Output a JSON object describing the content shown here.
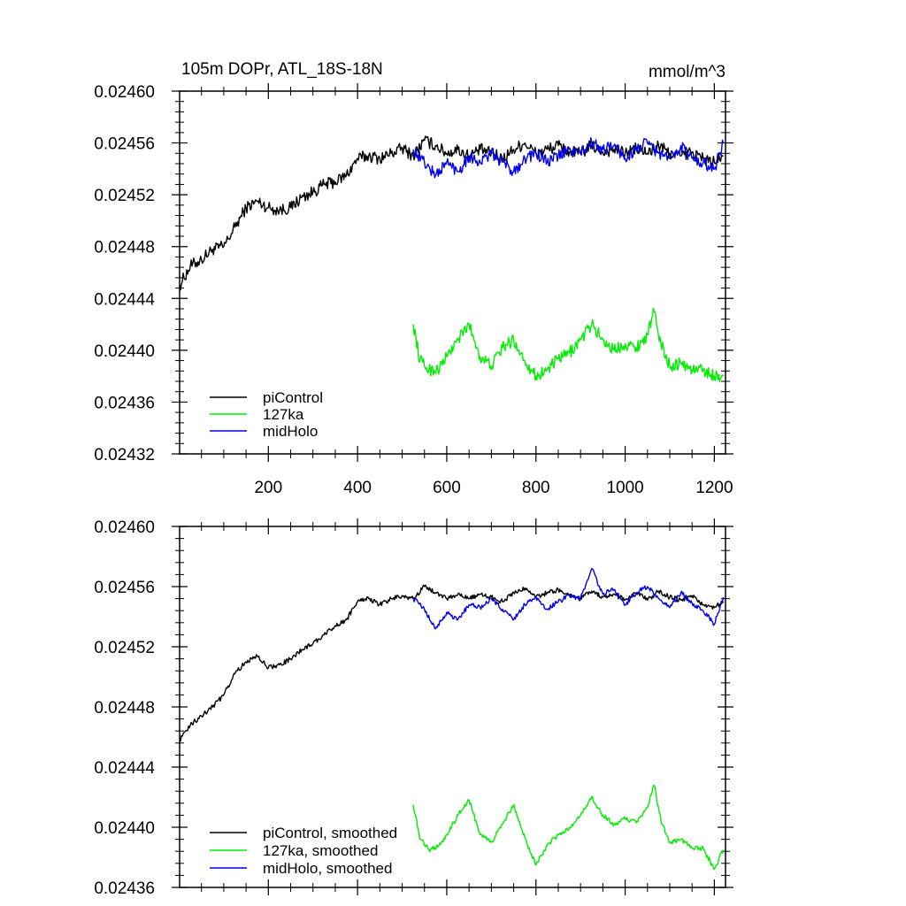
{
  "chart_data": [
    {
      "type": "line",
      "title": "105m DOPr, ATL_18S-18N",
      "units_label": "mmol/m^3",
      "xlim": [
        1,
        1225
      ],
      "ylim": [
        0.02432,
        0.0246
      ],
      "x_ticks": [
        200,
        400,
        600,
        800,
        1000,
        1200
      ],
      "x_tick_labels": [
        "200",
        "400",
        "600",
        "800",
        "1000",
        "1200"
      ],
      "y_ticks": [
        0.02432,
        0.02436,
        0.0244,
        0.02444,
        0.02448,
        0.02452,
        0.02456,
        0.0246
      ],
      "y_tick_labels": [
        "0.02432",
        "0.02436",
        "0.02440",
        "0.02444",
        "0.02448",
        "0.02452",
        "0.02456",
        "0.02460"
      ],
      "legend_position": "bottom-left",
      "series": [
        {
          "name": "piControl",
          "color": "#000000",
          "x": [
            1,
            25,
            50,
            75,
            100,
            125,
            150,
            175,
            200,
            225,
            250,
            275,
            300,
            325,
            350,
            375,
            400,
            425,
            450,
            475,
            500,
            525,
            550,
            575,
            600,
            625,
            650,
            675,
            700,
            725,
            750,
            775,
            800,
            825,
            850,
            875,
            900,
            925,
            950,
            975,
            1000,
            1025,
            1050,
            1075,
            1100,
            1125,
            1150,
            1175,
            1200,
            1220
          ],
          "values": [
            0.02445,
            0.024465,
            0.02447,
            0.024478,
            0.02448,
            0.024495,
            0.02451,
            0.024515,
            0.02451,
            0.024508,
            0.02451,
            0.024518,
            0.024522,
            0.024528,
            0.02453,
            0.024535,
            0.024548,
            0.02455,
            0.024548,
            0.024552,
            0.024556,
            0.02455,
            0.024562,
            0.024558,
            0.024552,
            0.024555,
            0.02455,
            0.024555,
            0.024552,
            0.024548,
            0.024555,
            0.02456,
            0.024552,
            0.024555,
            0.024558,
            0.024553,
            0.024552,
            0.024558,
            0.024553,
            0.024555,
            0.024552,
            0.024556,
            0.024552,
            0.024558,
            0.024552,
            0.02455,
            0.024553,
            0.024548,
            0.024545,
            0.02455
          ]
        },
        {
          "name": "127ka",
          "color": "#00ee00",
          "x": [
            525,
            540,
            560,
            580,
            600,
            625,
            650,
            675,
            700,
            725,
            750,
            775,
            800,
            825,
            850,
            875,
            900,
            925,
            950,
            975,
            1000,
            1025,
            1050,
            1065,
            1080,
            1100,
            1125,
            1150,
            1175,
            1200,
            1220
          ],
          "values": [
            0.02442,
            0.024392,
            0.024385,
            0.024385,
            0.024395,
            0.024408,
            0.02442,
            0.024395,
            0.024388,
            0.024402,
            0.024408,
            0.024392,
            0.02438,
            0.024385,
            0.024393,
            0.024398,
            0.024408,
            0.02442,
            0.024408,
            0.0244,
            0.024405,
            0.024402,
            0.024412,
            0.02443,
            0.024405,
            0.024388,
            0.02439,
            0.024385,
            0.024385,
            0.02438,
            0.02438
          ]
        },
        {
          "name": "midHolo",
          "color": "#0000ee",
          "x": [
            525,
            550,
            575,
            600,
            625,
            650,
            675,
            700,
            725,
            750,
            775,
            800,
            825,
            850,
            875,
            900,
            925,
            950,
            975,
            1000,
            1025,
            1050,
            1075,
            1100,
            1125,
            1150,
            1175,
            1200,
            1220
          ],
          "values": [
            0.024555,
            0.024545,
            0.024535,
            0.024545,
            0.024538,
            0.02455,
            0.024545,
            0.024552,
            0.024545,
            0.024538,
            0.024548,
            0.024552,
            0.024545,
            0.02455,
            0.024555,
            0.024552,
            0.02456,
            0.024555,
            0.024558,
            0.024548,
            0.024555,
            0.02456,
            0.024552,
            0.024548,
            0.024558,
            0.024548,
            0.024545,
            0.02454,
            0.02456
          ]
        }
      ]
    },
    {
      "type": "line",
      "title": "",
      "xlim": [
        1,
        1225
      ],
      "ylim": [
        0.02436,
        0.0246
      ],
      "x_ticks": [
        200,
        400,
        600,
        800,
        1000,
        1200
      ],
      "y_ticks": [
        0.02436,
        0.0244,
        0.02444,
        0.02448,
        0.02452,
        0.02456,
        0.0246
      ],
      "y_tick_labels": [
        "0.02436",
        "0.02440",
        "0.02444",
        "0.02448",
        "0.02452",
        "0.02456",
        "0.02460"
      ],
      "legend_position": "bottom-left",
      "series": [
        {
          "name": "piControl, smoothed",
          "color": "#000000",
          "x": [
            1,
            25,
            50,
            75,
            100,
            125,
            150,
            175,
            200,
            225,
            250,
            275,
            300,
            325,
            350,
            375,
            400,
            425,
            450,
            475,
            500,
            525,
            550,
            575,
            600,
            625,
            650,
            675,
            700,
            725,
            750,
            775,
            800,
            825,
            850,
            875,
            900,
            925,
            950,
            975,
            1000,
            1025,
            1050,
            1075,
            1100,
            1125,
            1150,
            1175,
            1200,
            1220
          ],
          "values": [
            0.024458,
            0.024468,
            0.024474,
            0.02448,
            0.024488,
            0.024502,
            0.02451,
            0.024514,
            0.024506,
            0.024508,
            0.024512,
            0.024518,
            0.024522,
            0.024528,
            0.024534,
            0.024538,
            0.02455,
            0.024552,
            0.024548,
            0.024552,
            0.024554,
            0.024552,
            0.02456,
            0.024556,
            0.024552,
            0.024555,
            0.024552,
            0.024555,
            0.024553,
            0.02455,
            0.024556,
            0.024559,
            0.024553,
            0.024556,
            0.024558,
            0.024554,
            0.024552,
            0.024557,
            0.024553,
            0.024555,
            0.024551,
            0.024556,
            0.024551,
            0.024557,
            0.024553,
            0.024551,
            0.024554,
            0.024548,
            0.024546,
            0.02455
          ]
        },
        {
          "name": "127ka, smoothed",
          "color": "#00ee00",
          "x": [
            525,
            540,
            560,
            580,
            600,
            625,
            650,
            675,
            700,
            725,
            750,
            775,
            800,
            825,
            850,
            875,
            900,
            925,
            950,
            975,
            1000,
            1025,
            1050,
            1065,
            1080,
            1100,
            1125,
            1150,
            1175,
            1200,
            1220
          ],
          "values": [
            0.024415,
            0.024392,
            0.024385,
            0.024387,
            0.024395,
            0.024408,
            0.024418,
            0.024395,
            0.02439,
            0.024402,
            0.024415,
            0.024393,
            0.024375,
            0.024388,
            0.024395,
            0.0244,
            0.024408,
            0.02442,
            0.024408,
            0.024402,
            0.024406,
            0.024403,
            0.024413,
            0.024428,
            0.024405,
            0.02439,
            0.024392,
            0.024386,
            0.024386,
            0.024372,
            0.024385
          ]
        },
        {
          "name": "midHolo, smoothed",
          "color": "#0000ee",
          "x": [
            525,
            550,
            575,
            600,
            625,
            650,
            675,
            700,
            725,
            750,
            775,
            800,
            825,
            850,
            875,
            900,
            925,
            950,
            975,
            1000,
            1025,
            1050,
            1075,
            1100,
            1125,
            1150,
            1175,
            1200,
            1220
          ],
          "values": [
            0.024552,
            0.024545,
            0.024532,
            0.024543,
            0.024538,
            0.024548,
            0.024546,
            0.024552,
            0.024545,
            0.024538,
            0.024548,
            0.024553,
            0.024545,
            0.02455,
            0.024554,
            0.024552,
            0.024572,
            0.024555,
            0.024558,
            0.024548,
            0.024556,
            0.02456,
            0.024552,
            0.024546,
            0.024556,
            0.024549,
            0.024544,
            0.024535,
            0.024553
          ]
        }
      ]
    }
  ]
}
